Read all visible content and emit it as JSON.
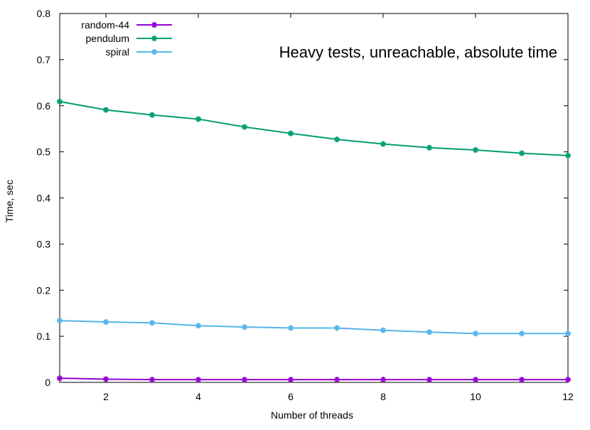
{
  "chart_data": {
    "type": "line",
    "title": "Heavy tests, unreachable, absolute time",
    "xlabel": "Number of threads",
    "ylabel": "Time, sec",
    "xlim": [
      1,
      12
    ],
    "ylim": [
      0,
      0.8
    ],
    "xticks": [
      2,
      4,
      6,
      8,
      10,
      12
    ],
    "yticks": [
      0,
      0.1,
      0.2,
      0.3,
      0.4,
      0.5,
      0.6,
      0.7,
      0.8
    ],
    "ytick_labels": [
      "0",
      "0.1",
      "0.2",
      "0.3",
      "0.4",
      "0.5",
      "0.6",
      "0.7",
      "0.8"
    ],
    "legend_position": "top-left",
    "grid": false,
    "x": [
      1,
      2,
      3,
      4,
      5,
      6,
      7,
      8,
      9,
      10,
      11,
      12
    ],
    "series": [
      {
        "name": "random-44",
        "color": "#9400d3",
        "values": [
          0.009,
          0.007,
          0.006,
          0.006,
          0.006,
          0.006,
          0.006,
          0.006,
          0.006,
          0.006,
          0.006,
          0.006
        ]
      },
      {
        "name": "pendulum",
        "color": "#009e73",
        "values": [
          0.609,
          0.591,
          0.58,
          0.571,
          0.554,
          0.54,
          0.527,
          0.517,
          0.509,
          0.504,
          0.497,
          0.492
        ]
      },
      {
        "name": "spiral",
        "color": "#56b4e9",
        "values": [
          0.134,
          0.131,
          0.129,
          0.123,
          0.12,
          0.118,
          0.118,
          0.113,
          0.109,
          0.106,
          0.106,
          0.106
        ]
      }
    ]
  }
}
